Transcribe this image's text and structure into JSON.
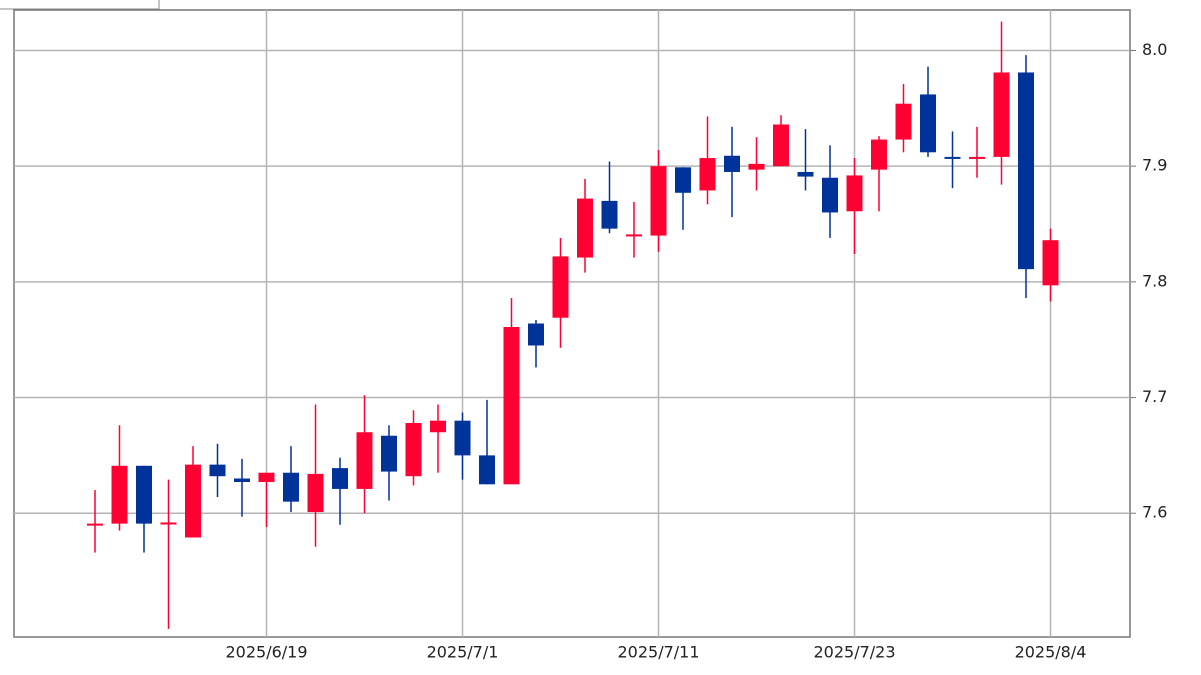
{
  "chart_data": {
    "type": "candlestick",
    "categories": [
      null,
      null,
      null,
      null,
      null,
      null,
      null,
      "2025/6/19",
      null,
      null,
      null,
      null,
      null,
      null,
      null,
      "2025/7/1",
      null,
      null,
      null,
      null,
      null,
      null,
      null,
      "2025/7/11",
      null,
      null,
      null,
      null,
      null,
      null,
      null,
      "2025/7/23",
      null,
      null,
      null,
      null,
      null,
      null,
      null,
      "2025/8/4"
    ],
    "open": [
      7.59,
      7.591,
      7.641,
      7.591,
      7.579,
      7.642,
      7.63,
      7.627,
      7.635,
      7.601,
      7.639,
      7.621,
      7.667,
      7.632,
      7.67,
      7.68,
      7.65,
      7.625,
      7.764,
      7.769,
      7.821,
      7.87,
      7.84,
      7.84,
      7.899,
      7.879,
      7.909,
      7.897,
      7.9,
      7.895,
      7.89,
      7.861,
      7.897,
      7.923,
      7.962,
      7.908,
      7.907,
      7.908,
      7.981,
      7.797
    ],
    "high": [
      7.62,
      7.676,
      7.641,
      7.629,
      7.658,
      7.66,
      7.647,
      7.635,
      7.658,
      7.694,
      7.648,
      7.702,
      7.676,
      7.689,
      7.694,
      7.687,
      7.698,
      7.786,
      7.767,
      7.838,
      7.889,
      7.904,
      7.869,
      7.914,
      7.899,
      7.943,
      7.934,
      7.925,
      7.944,
      7.932,
      7.918,
      7.907,
      7.926,
      7.971,
      7.986,
      7.93,
      7.934,
      8.025,
      7.996,
      7.846
    ],
    "low": [
      7.566,
      7.585,
      7.566,
      7.5,
      7.579,
      7.614,
      7.597,
      7.588,
      7.601,
      7.571,
      7.59,
      7.6,
      7.611,
      7.624,
      7.635,
      7.629,
      7.625,
      7.625,
      7.726,
      7.743,
      7.808,
      7.842,
      7.821,
      7.826,
      7.845,
      7.867,
      7.856,
      7.879,
      7.9,
      7.879,
      7.838,
      7.824,
      7.861,
      7.912,
      7.908,
      7.881,
      7.89,
      7.884,
      7.786,
      7.783
    ],
    "close": [
      7.591,
      7.641,
      7.591,
      7.592,
      7.642,
      7.632,
      7.627,
      7.635,
      7.61,
      7.634,
      7.621,
      7.67,
      7.636,
      7.678,
      7.68,
      7.65,
      7.625,
      7.761,
      7.745,
      7.822,
      7.872,
      7.846,
      7.841,
      7.9,
      7.877,
      7.907,
      7.895,
      7.902,
      7.936,
      7.891,
      7.86,
      7.892,
      7.923,
      7.954,
      7.912,
      7.907,
      7.908,
      7.981,
      7.811,
      7.836
    ],
    "up_color": "#ff0033",
    "down_color": "#003399",
    "ylim": [
      7.493,
      8.035
    ],
    "yticks": [
      7.6,
      7.7,
      7.8,
      7.9,
      {
        "value": 8,
        "label": "8.0"
      }
    ],
    "y_axis_side": "right",
    "grid": true
  }
}
